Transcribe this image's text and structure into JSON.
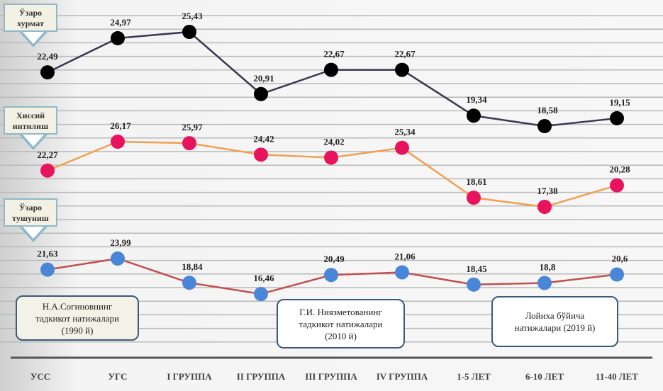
{
  "chart_data": {
    "type": "line",
    "title": "",
    "xlabel": "",
    "ylabel": "",
    "categories": [
      "УСС",
      "УГС",
      "I ГРУППА",
      "II ГРУППА",
      "III ГРУППА",
      "IV ГРУППА",
      "1-5 ЛЕТ",
      "6-10 ЛЕТ",
      "11-40 ЛЕТ"
    ],
    "series": [
      {
        "name": "Ўзаро хурмат",
        "line_color": "#3d3550",
        "marker_color": "#000000",
        "values": [
          22.49,
          24.97,
          25.43,
          20.91,
          22.67,
          22.67,
          19.34,
          18.58,
          19.15
        ],
        "labels": [
          "22,49",
          "24,97",
          "25,43",
          "20,91",
          "22,67",
          "22,67",
          "19,34",
          "18,58",
          "19,15"
        ]
      },
      {
        "name": "Хиссий интилиш",
        "line_color": "#f0a050",
        "marker_color": "#e8135f",
        "values": [
          22.27,
          26.17,
          25.97,
          24.42,
          24.02,
          25.34,
          18.61,
          17.38,
          20.28
        ],
        "labels": [
          "22,27",
          "26,17",
          "25,97",
          "24,42",
          "24,02",
          "25,34",
          "18,61",
          "17,38",
          "20,28"
        ]
      },
      {
        "name": "Ўзаро тушуниш",
        "line_color": "#c0504d",
        "marker_color": "#4a86d8",
        "values": [
          21.63,
          23.99,
          18.84,
          16.46,
          20.49,
          21.06,
          18.45,
          18.8,
          20.6
        ],
        "labels": [
          "21,63",
          "23,99",
          "18,84",
          "16,46",
          "20,49",
          "21,06",
          "18,45",
          "18,8",
          "20,6"
        ]
      }
    ],
    "grid": true,
    "legend": "callouts-left"
  },
  "callouts": [
    {
      "line1": "Ўзаро",
      "line2": "хурмат"
    },
    {
      "line1": "Хиссий",
      "line2": "интилиш"
    },
    {
      "line1": "Ўзаро",
      "line2": "тушуниш"
    }
  ],
  "notes": [
    "Н.А.Согиновнинг\nтадкикот натижалари\n(1990 й)",
    "Г.И. Ниязметованинг\nтадкикот натижалари\n(2010 й)",
    "Лойиха бўйича\nнатижалари (2019 й)"
  ]
}
